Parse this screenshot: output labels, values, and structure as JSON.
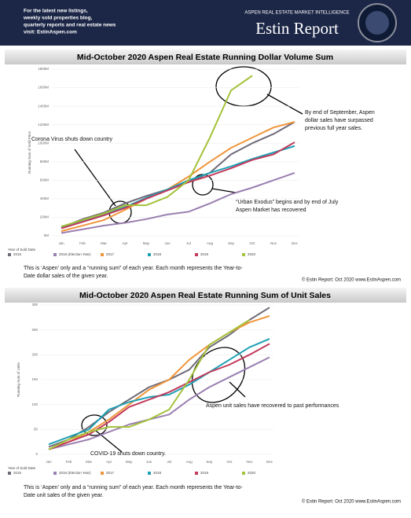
{
  "header": {
    "left": [
      "For the latest new listings,",
      "weekly sold properties blog,",
      "quarterly reports and real estate news",
      "visit: EstinAspen.com"
    ],
    "tagline": "ASPEN REAL ESTATE MARKET INTELLIGENCE",
    "brand": "Estin Report"
  },
  "chart_data": [
    {
      "type": "line",
      "title": "Mid-October 2020 Aspen Real Estate Running Dollar Volume Sum",
      "y_label": "Running Sum of Sold Price",
      "categories": [
        "Jan",
        "Feb",
        "Mar",
        "Apr",
        "May",
        "Jun",
        "Jul",
        "Aug",
        "Sep",
        "Oct",
        "Nov",
        "Dec"
      ],
      "ylim": [
        0,
        1800
      ],
      "yticks": [
        {
          "value": 0,
          "label": "0M"
        },
        {
          "value": 200,
          "label": "200M"
        },
        {
          "value": 400,
          "label": "400M"
        },
        {
          "value": 600,
          "label": "600M"
        },
        {
          "value": 800,
          "label": "800M"
        },
        {
          "value": 1000,
          "label": "1000M"
        },
        {
          "value": 1200,
          "label": "1200M"
        },
        {
          "value": 1400,
          "label": "1400M"
        },
        {
          "value": 1600,
          "label": "1600M"
        },
        {
          "value": 1800,
          "label": "1800M"
        }
      ],
      "legend_title": "Year of Sold Date",
      "series": [
        {
          "name": "2015",
          "color": "#6e6a78",
          "values": [
            90,
            180,
            250,
            350,
            430,
            500,
            580,
            680,
            880,
            1000,
            1100,
            1230
          ]
        },
        {
          "name": "2016 (Election Year)",
          "color": "#9a7fb0",
          "values": [
            30,
            70,
            110,
            140,
            180,
            230,
            260,
            350,
            450,
            520,
            600,
            680
          ]
        },
        {
          "name": "2017",
          "color": "#f0953a",
          "values": [
            50,
            110,
            170,
            280,
            400,
            500,
            640,
            800,
            950,
            1060,
            1170,
            1230
          ]
        },
        {
          "name": "2018",
          "color": "#1ea0b4",
          "values": [
            100,
            160,
            230,
            310,
            410,
            500,
            600,
            680,
            750,
            830,
            900,
            970
          ]
        },
        {
          "name": "2019",
          "color": "#c23a5c",
          "values": [
            80,
            150,
            220,
            300,
            400,
            490,
            580,
            650,
            730,
            820,
            880,
            1010
          ]
        },
        {
          "name": "2020",
          "color": "#a4c23a",
          "values": [
            100,
            170,
            240,
            330,
            330,
            420,
            600,
            1060,
            1570,
            1730,
            null,
            null
          ]
        }
      ],
      "annotations": [
        [
          "Corona Virus shuts down country"
        ],
        [
          "By end of September, Aspen",
          "dollar sales have surpassed",
          "previous full year sales."
        ],
        [
          "“Urban Exodus” begins and by end of July",
          "Aspen Market has recovered"
        ]
      ],
      "caption": [
        "This is ‘Aspen’ only and a “running sum” of each year. Each month represents the Year-to-",
        "Date dollar sales of the given year."
      ],
      "footer": "© Estin Report: Oct 2020 www.EstinAspen.com"
    },
    {
      "type": "line",
      "title": "Mid-October 2020 Aspen Real Estate Running Sum of Unit Sales",
      "y_label": "Running Sum of Units",
      "categories": [
        "Jan",
        "Feb",
        "Mar",
        "Apr",
        "May",
        "Jun",
        "Jul",
        "Aug",
        "Sep",
        "Oct",
        "Nov",
        "Dec"
      ],
      "ylim": [
        0,
        300
      ],
      "yticks": [
        0,
        50,
        100,
        150,
        200,
        250,
        300
      ],
      "legend_title": "Year of Sold Date",
      "series": [
        {
          "name": "2015",
          "color": "#6e6a78",
          "values": [
            15,
            30,
            55,
            85,
            110,
            135,
            150,
            170,
            215,
            240,
            270,
            295
          ]
        },
        {
          "name": "2016 (Election Year)",
          "color": "#9a7fb0",
          "values": [
            10,
            20,
            30,
            45,
            60,
            70,
            80,
            110,
            135,
            155,
            175,
            195
          ]
        },
        {
          "name": "2017",
          "color": "#f0953a",
          "values": [
            10,
            25,
            45,
            70,
            100,
            130,
            150,
            190,
            220,
            245,
            265,
            278
          ]
        },
        {
          "name": "2018",
          "color": "#1ea0b4",
          "values": [
            20,
            35,
            50,
            90,
            105,
            115,
            120,
            140,
            165,
            190,
            215,
            232
          ]
        },
        {
          "name": "2019",
          "color": "#c23a5c",
          "values": [
            10,
            25,
            40,
            65,
            95,
            110,
            125,
            145,
            165,
            180,
            200,
            222
          ]
        },
        {
          "name": "2020",
          "color": "#a4c23a",
          "values": [
            10,
            30,
            45,
            55,
            55,
            70,
            90,
            150,
            220,
            245,
            270,
            null
          ]
        }
      ],
      "annotations": [
        [
          "Aspen unit sales have recovered to past performances"
        ],
        [
          "COVID-19 shuts down country."
        ]
      ],
      "caption": [
        "This is ‘Aspen’ only and a “running sum” of each year. Each month represents the Year-to-",
        "Date unit sales of the given year."
      ],
      "footer": "© Estin Report: Oct 2020 www.EstinAspen.com"
    }
  ]
}
